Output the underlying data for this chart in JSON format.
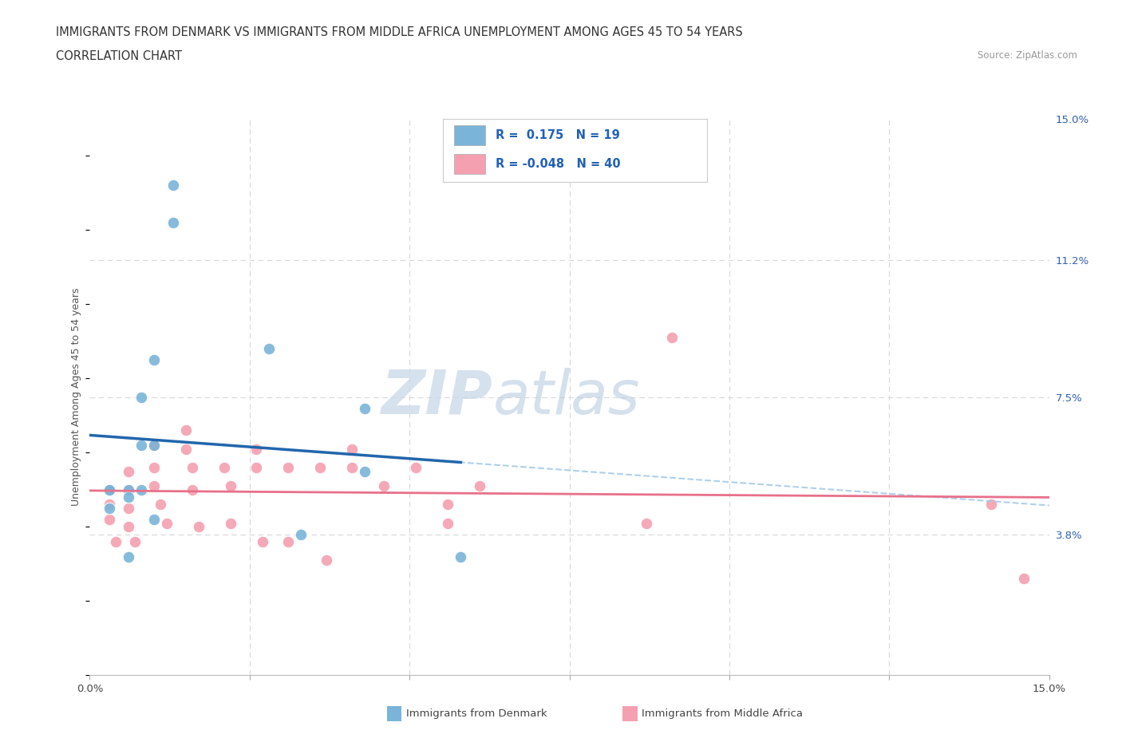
{
  "title_line1": "IMMIGRANTS FROM DENMARK VS IMMIGRANTS FROM MIDDLE AFRICA UNEMPLOYMENT AMONG AGES 45 TO 54 YEARS",
  "title_line2": "CORRELATION CHART",
  "source": "Source: ZipAtlas.com",
  "ylabel": "Unemployment Among Ages 45 to 54 years",
  "xlim": [
    0.0,
    0.15
  ],
  "ylim": [
    0.0,
    0.15
  ],
  "color_denmark": "#7ab4d8",
  "color_africa": "#f4a0b0",
  "trendline_color_denmark": "#2166ac",
  "trendline_color_denmark_dash": "#a0c8e8",
  "trendline_color_africa": "#e8708a",
  "background_color": "#ffffff",
  "grid_color": "#d8d8d8",
  "denmark_x": [
    0.003,
    0.003,
    0.003,
    0.006,
    0.006,
    0.006,
    0.008,
    0.008,
    0.008,
    0.01,
    0.01,
    0.01,
    0.013,
    0.013,
    0.028,
    0.033,
    0.043,
    0.043,
    0.058
  ],
  "denmark_y": [
    0.05,
    0.05,
    0.045,
    0.05,
    0.048,
    0.032,
    0.075,
    0.062,
    0.05,
    0.042,
    0.085,
    0.062,
    0.132,
    0.122,
    0.088,
    0.038,
    0.055,
    0.072,
    0.032
  ],
  "africa_x": [
    0.003,
    0.003,
    0.003,
    0.004,
    0.006,
    0.006,
    0.006,
    0.006,
    0.007,
    0.01,
    0.01,
    0.01,
    0.011,
    0.012,
    0.015,
    0.015,
    0.016,
    0.016,
    0.017,
    0.021,
    0.022,
    0.022,
    0.026,
    0.026,
    0.027,
    0.031,
    0.031,
    0.036,
    0.037,
    0.041,
    0.041,
    0.046,
    0.051,
    0.056,
    0.056,
    0.061,
    0.087,
    0.091,
    0.141,
    0.146
  ],
  "africa_y": [
    0.05,
    0.046,
    0.042,
    0.036,
    0.055,
    0.05,
    0.045,
    0.04,
    0.036,
    0.062,
    0.056,
    0.051,
    0.046,
    0.041,
    0.066,
    0.061,
    0.056,
    0.05,
    0.04,
    0.056,
    0.051,
    0.041,
    0.061,
    0.056,
    0.036,
    0.056,
    0.036,
    0.056,
    0.031,
    0.061,
    0.056,
    0.051,
    0.056,
    0.046,
    0.041,
    0.051,
    0.041,
    0.091,
    0.046,
    0.026
  ],
  "watermark_zip": "ZIP",
  "watermark_atlas": "atlas",
  "legend_text": [
    [
      "R =  0.175",
      "N = 19"
    ],
    [
      "R = -0.048",
      "N = 40"
    ]
  ]
}
